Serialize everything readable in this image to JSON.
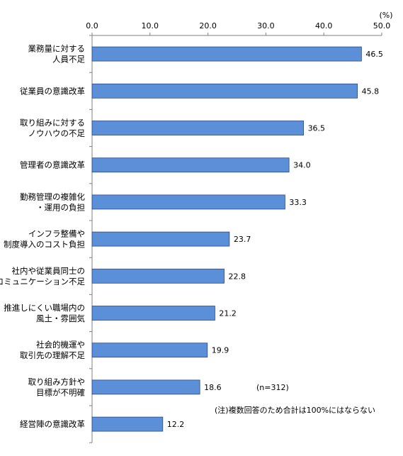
{
  "chart_data": {
    "type": "bar",
    "orientation": "horizontal",
    "unit_label": "(%)",
    "xlim": [
      0,
      50
    ],
    "ticks": [
      "0.0",
      "10.0",
      "20.0",
      "30.0",
      "40.0",
      "50.0"
    ],
    "grid": false,
    "bar_color": "#5b8fd8",
    "bar_edge_color": "#2a4a8a",
    "categories": [
      [
        "業務量に対する",
        "人員不足"
      ],
      [
        "従業員の意識改革"
      ],
      [
        "取り組みに対する",
        "ノウハウの不足"
      ],
      [
        "管理者の意識改革"
      ],
      [
        "勤務管理の複雑化",
        "・運用の負担"
      ],
      [
        "インフラ整備や",
        "制度導入のコスト負担"
      ],
      [
        "社内や従業員同士の",
        "コミュニケーション不足"
      ],
      [
        "推進しにくい職場内の",
        "風土・雰囲気"
      ],
      [
        "社会的機運や",
        "取引先の理解不足"
      ],
      [
        "取り組み方針や",
        "目標が不明確"
      ],
      [
        "経営陣の意識改革"
      ]
    ],
    "values": [
      46.5,
      45.8,
      36.5,
      34.0,
      33.3,
      23.7,
      22.8,
      21.2,
      19.9,
      18.6,
      12.2
    ],
    "value_labels": [
      "46.5",
      "45.8",
      "36.5",
      "34.0",
      "33.3",
      "23.7",
      "22.8",
      "21.2",
      "19.9",
      "18.6",
      "12.2"
    ]
  },
  "annotations": {
    "sample_size": "(n=312)",
    "footnote": "(注)複数回答のため合計は100%にはならない"
  }
}
